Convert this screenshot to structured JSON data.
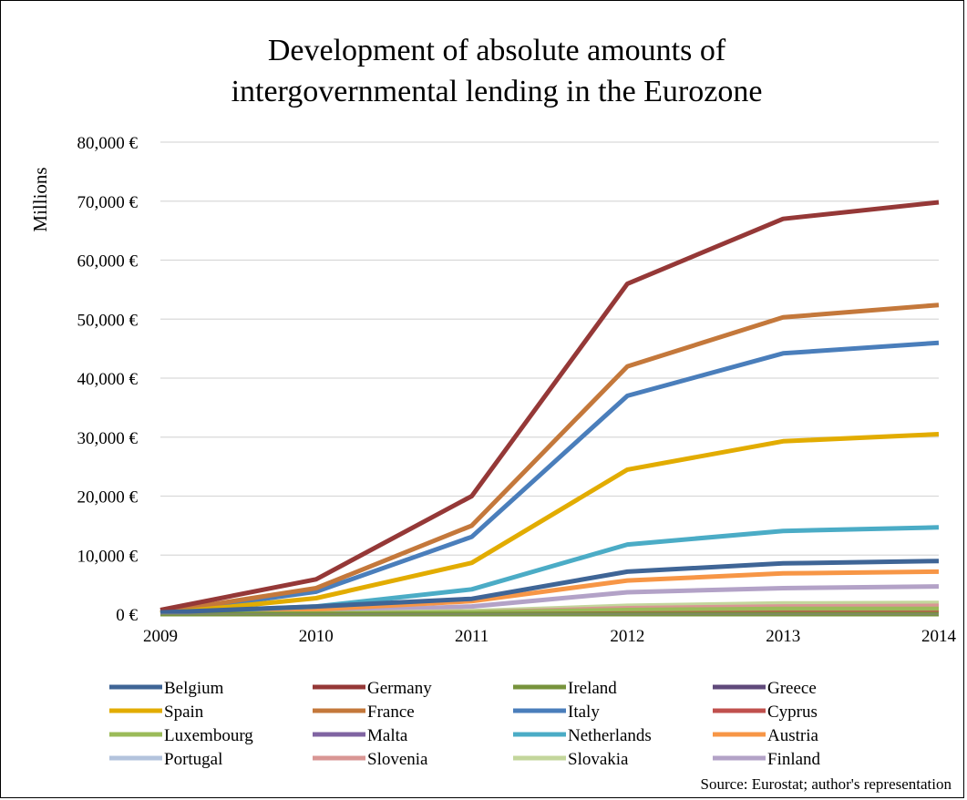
{
  "chart_data": {
    "type": "line",
    "title": [
      "Development of absolute amounts of",
      "intergovernmental lending in the Eurozone"
    ],
    "ylabel": "Millions",
    "xlabel": "",
    "x": [
      "2009",
      "2010",
      "2011",
      "2012",
      "2013",
      "2014"
    ],
    "yticks": [
      "0 €",
      "10,000 €",
      "20,000 €",
      "30,000 €",
      "40,000 €",
      "50,000 €",
      "60,000 €",
      "70,000 €",
      "80,000 €"
    ],
    "ylim": [
      0,
      80000
    ],
    "grid": true,
    "legend_position": "bottom",
    "series": [
      {
        "name": "Belgium",
        "color": "#3f6596",
        "values": [
          300,
          1300,
          2600,
          7200,
          8600,
          9000
        ]
      },
      {
        "name": "Germany",
        "color": "#953837",
        "values": [
          700,
          5900,
          20000,
          56000,
          67000,
          69800
        ]
      },
      {
        "name": "Ireland",
        "color": "#77933c",
        "values": [
          0,
          0,
          0,
          0,
          0,
          0
        ]
      },
      {
        "name": "Greece",
        "color": "#604a7b",
        "values": [
          0,
          0,
          0,
          0,
          0,
          0
        ]
      },
      {
        "name": "Spain",
        "color": "#e2ac00",
        "values": [
          100,
          2700,
          8700,
          24500,
          29300,
          30500
        ]
      },
      {
        "name": "France",
        "color": "#c4783b",
        "values": [
          300,
          4400,
          15000,
          42000,
          50300,
          52400
        ]
      },
      {
        "name": "Italy",
        "color": "#4a7ebb",
        "values": [
          200,
          3800,
          13100,
          37000,
          44200,
          46000
        ]
      },
      {
        "name": "Cyprus",
        "color": "#c0504d",
        "values": [
          0,
          0,
          0,
          100,
          200,
          200
        ]
      },
      {
        "name": "Luxembourg",
        "color": "#9bbb59",
        "values": [
          0,
          100,
          300,
          700,
          900,
          900
        ]
      },
      {
        "name": "Malta",
        "color": "#8064a2",
        "values": [
          0,
          0,
          0,
          100,
          100,
          100
        ]
      },
      {
        "name": "Netherlands",
        "color": "#4bacc6",
        "values": [
          200,
          1300,
          4200,
          11800,
          14100,
          14700
        ]
      },
      {
        "name": "Austria",
        "color": "#f79646",
        "values": [
          100,
          800,
          2200,
          5700,
          6900,
          7200
        ]
      },
      {
        "name": "Portugal",
        "color": "#b3c3dd",
        "values": [
          0,
          0,
          0,
          0,
          0,
          0
        ]
      },
      {
        "name": "Slovenia",
        "color": "#d99694",
        "values": [
          0,
          100,
          300,
          1000,
          1300,
          1400
        ]
      },
      {
        "name": "Slovakia",
        "color": "#c3d69b",
        "values": [
          0,
          100,
          500,
          1400,
          1800,
          1900
        ]
      },
      {
        "name": "Finland",
        "color": "#b3a2c7",
        "values": [
          100,
          400,
          1300,
          3700,
          4400,
          4700
        ]
      }
    ]
  },
  "source_note": "Source: Eurostat; author's representation"
}
